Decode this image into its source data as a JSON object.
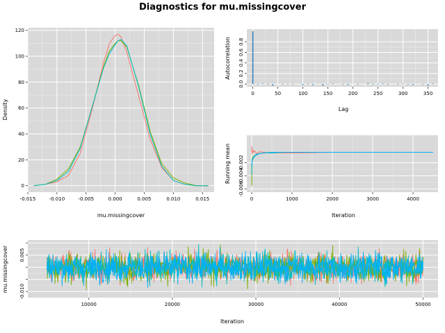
{
  "title": "Diagnostics for mu.missingcover",
  "colors": {
    "panel_bg": "#d9d9d9",
    "grid": "#ffffff",
    "series": [
      "#f8766d",
      "#7cae00",
      "#00bfc4",
      "#00b0f6"
    ],
    "acf": "#2c7fb8"
  },
  "chart_data": [
    {
      "id": "density",
      "type": "line",
      "xlabel": "mu.missingcover",
      "ylabel": "Density",
      "xlim": [
        -0.015,
        0.017
      ],
      "ylim": [
        -5,
        122
      ],
      "xticks": [
        -0.015,
        -0.01,
        -0.005,
        0.0,
        0.005,
        0.01,
        0.015
      ],
      "xtick_labels": [
        "-0.015",
        "-0.010",
        "-0.005",
        "0.000",
        "0.005",
        "0.010",
        "0.015"
      ],
      "yticks": [
        0,
        20,
        40,
        60,
        80,
        100,
        120
      ],
      "ytick_labels": [
        "0",
        "20",
        "40",
        "60",
        "80",
        "100",
        "120"
      ],
      "grid": true,
      "series": [
        {
          "color": "#f8766d",
          "x": [
            -0.014,
            -0.012,
            -0.01,
            -0.008,
            -0.006,
            -0.004,
            -0.002,
            -0.001,
            0.0,
            0.0005,
            0.001,
            0.002,
            0.004,
            0.006,
            0.008,
            0.01,
            0.012,
            0.014,
            0.016
          ],
          "y": [
            0,
            1,
            3,
            8,
            25,
            58,
            95,
            110,
            116,
            117,
            115,
            103,
            70,
            36,
            14,
            4,
            1,
            0,
            0
          ]
        },
        {
          "color": "#7cae00",
          "x": [
            -0.014,
            -0.012,
            -0.01,
            -0.008,
            -0.006,
            -0.004,
            -0.002,
            -0.001,
            0.0,
            0.0005,
            0.001,
            0.002,
            0.004,
            0.006,
            0.008,
            0.01,
            0.012,
            0.014,
            0.016
          ],
          "y": [
            0,
            1,
            5,
            13,
            30,
            60,
            92,
            104,
            110,
            112,
            112,
            107,
            78,
            42,
            17,
            6,
            2,
            0,
            0
          ]
        },
        {
          "color": "#00bfc4",
          "x": [
            -0.014,
            -0.012,
            -0.01,
            -0.008,
            -0.006,
            -0.004,
            -0.002,
            -0.001,
            0.0,
            0.0005,
            0.001,
            0.002,
            0.004,
            0.006,
            0.008,
            0.01,
            0.012,
            0.014,
            0.016
          ],
          "y": [
            0,
            1,
            4,
            11,
            29,
            60,
            91,
            102,
            109,
            112,
            113,
            108,
            77,
            40,
            15,
            4,
            1,
            0,
            0
          ]
        }
      ]
    },
    {
      "id": "autocorrelation",
      "type": "bar",
      "xlabel": "Lag",
      "ylabel": "Autocorrelation",
      "xlim": [
        -12,
        370
      ],
      "ylim": [
        -0.05,
        1.04
      ],
      "xticks": [
        0,
        50,
        100,
        150,
        200,
        250,
        300,
        350
      ],
      "xtick_labels": [
        "0",
        "50",
        "100",
        "150",
        "200",
        "250",
        "300",
        "350"
      ],
      "yticks": [
        0.0,
        0.2,
        0.4,
        0.6,
        0.8
      ],
      "ytick_labels": [
        "0.0",
        "0.2",
        "0.4",
        "0.6",
        "0.8"
      ],
      "grid": true,
      "lags": [
        0,
        10,
        20,
        30,
        40,
        50,
        60,
        70,
        80,
        90,
        100,
        110,
        120,
        130,
        140,
        150,
        160,
        170,
        180,
        190,
        200,
        210,
        220,
        230,
        240,
        250,
        260,
        270,
        280,
        290,
        300,
        310,
        320,
        330,
        340,
        350,
        360
      ],
      "values": [
        1.0,
        -0.01,
        0.01,
        -0.01,
        -0.03,
        0.0,
        -0.01,
        0.01,
        -0.01,
        0.0,
        -0.02,
        0.01,
        -0.02,
        0.0,
        -0.03,
        -0.01,
        0.01,
        0.0,
        -0.01,
        -0.02,
        0.0,
        -0.01,
        0.0,
        0.02,
        -0.01,
        -0.01,
        0.01,
        -0.01,
        0.0,
        -0.01,
        0.01,
        -0.01,
        -0.02,
        0.0,
        -0.01,
        -0.03,
        0.01
      ]
    },
    {
      "id": "running-mean",
      "type": "line",
      "xlabel": "Iteration",
      "ylabel": "Running mean",
      "xlim": [
        -120,
        4620
      ],
      "ylim": [
        -0.0065,
        0.0022
      ],
      "xticks": [
        0,
        1000,
        2000,
        3000,
        4000
      ],
      "xtick_labels": [
        "0",
        "1000",
        "2000",
        "3000",
        "4000"
      ],
      "yticks": [
        -0.006,
        -0.004,
        -0.002
      ],
      "ytick_labels": [
        "-0.006",
        "-0.004",
        "-0.002"
      ],
      "grid": true,
      "series": [
        {
          "color": "#f8766d",
          "x": [
            1,
            10,
            25,
            50,
            80,
            120,
            200,
            300,
            500,
            800,
            1200,
            2000,
            3000,
            4500
          ],
          "y": [
            0.0005,
            -0.0006,
            0.0,
            -0.0004,
            -0.0002,
            -0.0006,
            -0.0003,
            -0.0004,
            -0.0005,
            -0.0005,
            -0.0005,
            -0.0004,
            -0.0004,
            -0.0004
          ]
        },
        {
          "color": "#7cae00",
          "x": [
            1,
            10,
            25,
            50,
            80,
            120,
            200,
            300,
            500,
            800,
            1200,
            2000,
            3000,
            4500
          ],
          "y": [
            -0.0055,
            -0.0015,
            -0.0012,
            -0.001,
            -0.0009,
            -0.0008,
            -0.0006,
            -0.0005,
            -0.0004,
            -0.0004,
            -0.0004,
            -0.0004,
            -0.0004,
            -0.0004
          ]
        },
        {
          "color": "#00bfc4",
          "x": [
            1,
            10,
            25,
            50,
            80,
            120,
            200,
            300,
            500,
            800,
            1200,
            2000,
            3000,
            4500
          ],
          "y": [
            -0.0038,
            -0.0018,
            -0.0014,
            -0.0011,
            -0.0009,
            -0.0007,
            -0.0006,
            -0.0005,
            -0.0005,
            -0.0004,
            -0.0004,
            -0.0004,
            -0.0004,
            -0.0004
          ]
        },
        {
          "color": "#00b0f6",
          "x": [
            1,
            10,
            25,
            50,
            80,
            120,
            200,
            300,
            500,
            800,
            1200,
            2000,
            3000,
            4500
          ],
          "y": [
            -0.0025,
            -0.0019,
            -0.0015,
            -0.0012,
            -0.001,
            -0.0008,
            -0.0006,
            -0.0005,
            -0.0004,
            -0.0004,
            -0.0004,
            -0.0004,
            -0.0004,
            -0.0004
          ]
        }
      ]
    },
    {
      "id": "trace",
      "type": "line",
      "xlabel": "Iteration",
      "ylabel": "mu.missingcover",
      "xlim": [
        2700,
        51800
      ],
      "ylim": [
        -0.0125,
        0.0112
      ],
      "xticks": [
        10000,
        20000,
        30000,
        40000,
        50000
      ],
      "xtick_labels": [
        "10000",
        "20000",
        "30000",
        "40000",
        "50000"
      ],
      "yticks": [
        -0.01,
        -0.005,
        0.0,
        0.005,
        0.01
      ],
      "ytick_labels": [
        "-0.010",
        "",
        "",
        "0.005",
        ""
      ],
      "grid": true,
      "iterations": [
        5000,
        50000
      ],
      "mean": 0.0,
      "sd": 0.0035,
      "series_colors": [
        "#f8766d",
        "#7cae00",
        "#00bfc4",
        "#00b0f6"
      ]
    }
  ]
}
